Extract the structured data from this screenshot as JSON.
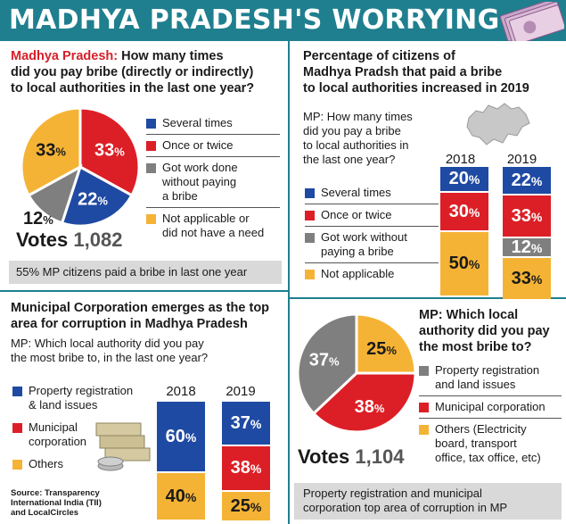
{
  "title": "MADHYA PRADESH'S WORRYING PICTURE",
  "colors": {
    "header": "#1f7f8f",
    "blue": "#1f4aa3",
    "red": "#dc1f26",
    "gray": "#7f7f7f",
    "yellow": "#f5b335"
  },
  "panel1": {
    "question_prefix": "Madhya Pradesh:",
    "question_rest_1": " How many times",
    "question_line2": "did you pay bribe (directly or indirectly)",
    "question_line3": "to local authorities in the last one year?",
    "legend": [
      {
        "label_1": "Several times",
        "label_2": "",
        "label_3": "",
        "color": "#1f4aa3"
      },
      {
        "label_1": "Once or twice",
        "label_2": "",
        "label_3": "",
        "color": "#dc1f26"
      },
      {
        "label_1": "Got work done",
        "label_2": "without paying",
        "label_3": "a bribe",
        "color": "#7f7f7f"
      },
      {
        "label_1": "Not applicable or",
        "label_2": "did not have a need",
        "label_3": "",
        "color": "#f5b335"
      }
    ],
    "votes_label": "Votes",
    "votes_value": "1,082",
    "footer": "55% MP citizens paid a bribe in last one year"
  },
  "panel2": {
    "title_1": "Percentage of citizens of",
    "title_2": "Madhya Pradsh that paid a bribe",
    "title_3": "to local authorities increased in 2019",
    "sub_1": "MP: How many times",
    "sub_2": "did you pay a bribe",
    "sub_3": "to local authorities in",
    "sub_4": "the last one year?",
    "legend": [
      {
        "label_1": "Several times",
        "label_2": "",
        "color": "#1f4aa3"
      },
      {
        "label_1": "Once or twice",
        "label_2": "",
        "color": "#dc1f26"
      },
      {
        "label_1": "Got work without",
        "label_2": "paying a bribe",
        "color": "#7f7f7f"
      },
      {
        "label_1": "Not applicable",
        "label_2": "",
        "color": "#f5b335"
      }
    ]
  },
  "panel3": {
    "title_1": "Municipal Corporation emerges as the top",
    "title_2": "area for corruption in Madhya Pradesh",
    "sub_1": "MP: Which local authority did you pay",
    "sub_2": "the most bribe to, in the last one year?",
    "legend": [
      {
        "label_1": "Property registration",
        "label_2": "& land issues",
        "color": "#1f4aa3"
      },
      {
        "label_1": "Municipal",
        "label_2": "corporation",
        "color": "#dc1f26"
      },
      {
        "label_1": "Others",
        "label_2": "",
        "color": "#f5b335"
      }
    ],
    "source_1": "Source: Transparency",
    "source_2": "International India (TII)",
    "source_3": "and LocalCircles"
  },
  "panel4": {
    "title_1": "MP: Which local",
    "title_2": "authority did you pay",
    "title_3": "the most bribe to?",
    "legend": [
      {
        "label_1": "Property registration",
        "label_2": "and land issues",
        "label_3": "",
        "label_4": "",
        "color": "#7f7f7f"
      },
      {
        "label_1": "Municipal corporation",
        "label_2": "",
        "label_3": "",
        "label_4": "",
        "color": "#dc1f26"
      },
      {
        "label_1": "Others (Electricity",
        "label_2": "board, transport",
        "label_3": "office, tax office, etc)",
        "label_4": "",
        "color": "#f5b335"
      }
    ],
    "votes_label": "Votes",
    "votes_value": "1,104",
    "footer_1": "Property registration and municipal",
    "footer_2": "corporation top area of corruption in MP"
  },
  "chart_data": [
    {
      "type": "pie",
      "title": "How many times did you pay bribe to local authorities in the last one year?",
      "categories": [
        "Several times",
        "Once or twice",
        "Got work done without paying a bribe",
        "Not applicable or did not have a need"
      ],
      "values": [
        22,
        33,
        12,
        33
      ],
      "labels": [
        "22",
        "33",
        "12",
        "33"
      ],
      "colors": [
        "#1f4aa3",
        "#dc1f26",
        "#7f7f7f",
        "#f5b335"
      ]
    },
    {
      "type": "bar",
      "stacked": true,
      "title": "Percentage of citizens of Madhya Pradsh that paid a bribe",
      "categories": [
        "2018",
        "2019"
      ],
      "series": [
        {
          "name": "Several times",
          "values": [
            20,
            22
          ],
          "color": "#1f4aa3"
        },
        {
          "name": "Once or twice",
          "values": [
            30,
            33
          ],
          "color": "#dc1f26"
        },
        {
          "name": "Got work without paying a bribe",
          "values": [
            0,
            12
          ],
          "color": "#7f7f7f"
        },
        {
          "name": "Not applicable",
          "values": [
            50,
            33
          ],
          "color": "#f5b335"
        }
      ]
    },
    {
      "type": "bar",
      "stacked": true,
      "title": "Which local authority did you pay the most bribe to, in the last one year?",
      "categories": [
        "2018",
        "2019"
      ],
      "series": [
        {
          "name": "Property registration & land issues",
          "values": [
            60,
            37
          ],
          "color": "#1f4aa3"
        },
        {
          "name": "Municipal corporation",
          "values": [
            0,
            38
          ],
          "color": "#dc1f26"
        },
        {
          "name": "Others",
          "values": [
            40,
            25
          ],
          "color": "#f5b335"
        }
      ]
    },
    {
      "type": "pie",
      "title": "MP: Which local authority did you pay the most bribe to?",
      "categories": [
        "Others",
        "Municipal corporation",
        "Property registration and land issues"
      ],
      "values": [
        25,
        38,
        37
      ],
      "labels": [
        "25",
        "38",
        "37"
      ],
      "colors": [
        "#f5b335",
        "#dc1f26",
        "#7f7f7f"
      ]
    }
  ]
}
